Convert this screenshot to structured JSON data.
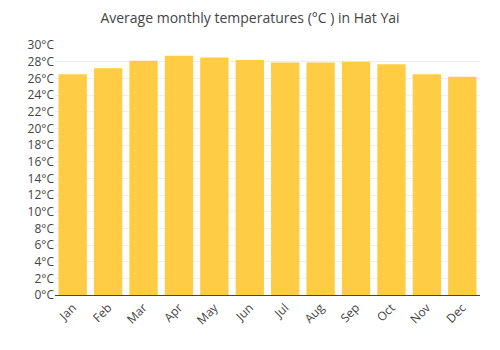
{
  "chart_data": {
    "type": "bar",
    "title": "Average monthly temperatures (°C ) in Hat Yai",
    "categories": [
      "Jan",
      "Feb",
      "Mar",
      "Apr",
      "May",
      "Jun",
      "Jul",
      "Aug",
      "Sep",
      "Oct",
      "Nov",
      "Dec"
    ],
    "values": [
      26.5,
      27.2,
      28.1,
      28.7,
      28.5,
      28.2,
      27.9,
      27.9,
      28.0,
      27.7,
      26.5,
      26.2
    ],
    "color": "#FFCC44",
    "ylim": [
      0,
      30
    ],
    "yticks": [
      {
        "value": 0,
        "label": "0°C"
      },
      {
        "value": 2,
        "label": "2°C"
      },
      {
        "value": 4,
        "label": "4°C"
      },
      {
        "value": 6,
        "label": "6°C"
      },
      {
        "value": 8,
        "label": "8°C"
      },
      {
        "value": 10,
        "label": "10°C"
      },
      {
        "value": 12,
        "label": "12°C"
      },
      {
        "value": 14,
        "label": "14°C"
      },
      {
        "value": 16,
        "label": "16°C"
      },
      {
        "value": 18,
        "label": "18°C"
      },
      {
        "value": 20,
        "label": "20°C"
      },
      {
        "value": 22,
        "label": "22°C"
      },
      {
        "value": 24,
        "label": "24°C"
      },
      {
        "value": 26,
        "label": "26°C"
      },
      {
        "value": 28,
        "label": "28°C"
      },
      {
        "value": 30,
        "label": "30°C"
      }
    ],
    "grid": true
  }
}
